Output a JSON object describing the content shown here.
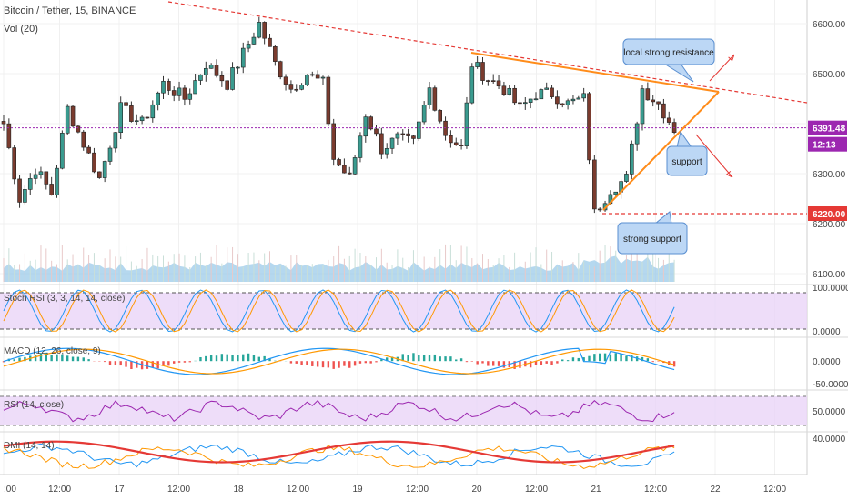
{
  "header": {
    "symbol_line": "Bitcoin / Tether, 15, BINANCE",
    "volume_label": "Vol (20)"
  },
  "chart_data": {
    "type": "candlestick",
    "price_axis": {
      "ticks": [
        "6600.00",
        "6500.00",
        "6400.00",
        "6300.00",
        "6200.00",
        "6100.00"
      ],
      "ylim": [
        6080,
        6640
      ]
    },
    "x_axis": {
      "ticks": [
        ":00",
        "12:00",
        "17",
        "12:00",
        "18",
        "12:00",
        "19",
        "12:00",
        "20",
        "12:00",
        "21",
        "12:00",
        "22",
        "12:00"
      ]
    },
    "price_anchors": [
      [
        0,
        6400
      ],
      [
        3,
        6250
      ],
      [
        6,
        6310
      ],
      [
        9,
        6260
      ],
      [
        12,
        6430
      ],
      [
        15,
        6360
      ],
      [
        18,
        6290
      ],
      [
        22,
        6430
      ],
      [
        26,
        6400
      ],
      [
        30,
        6480
      ],
      [
        34,
        6450
      ],
      [
        38,
        6520
      ],
      [
        42,
        6480
      ],
      [
        45,
        6540
      ],
      [
        48,
        6600
      ],
      [
        51,
        6520
      ],
      [
        54,
        6470
      ],
      [
        57,
        6500
      ],
      [
        60,
        6480
      ],
      [
        62,
        6330
      ],
      [
        65,
        6290
      ],
      [
        68,
        6420
      ],
      [
        71,
        6350
      ],
      [
        74,
        6370
      ],
      [
        77,
        6360
      ],
      [
        80,
        6470
      ],
      [
        83,
        6380
      ],
      [
        86,
        6350
      ],
      [
        88,
        6520
      ],
      [
        91,
        6490
      ],
      [
        94,
        6470
      ],
      [
        97,
        6430
      ],
      [
        100,
        6460
      ],
      [
        103,
        6460
      ],
      [
        106,
        6440
      ],
      [
        109,
        6450
      ],
      [
        111,
        6220
      ],
      [
        114,
        6270
      ],
      [
        117,
        6290
      ],
      [
        120,
        6470
      ],
      [
        123,
        6440
      ],
      [
        126,
        6390
      ]
    ],
    "price_tags": {
      "current": "6391.48",
      "countdown": "12:13",
      "support": "6220.00"
    },
    "colors": {
      "up": "#26a69a",
      "down": "#ef5350",
      "trend": "#ff8c1a",
      "dashed": "#e53935",
      "current_line": "#9c27b0",
      "volume": "#9ccbea"
    },
    "annotations": {
      "resistance": "local strong resistance",
      "support": "support",
      "strong_support": "strong support"
    },
    "indicators": {
      "stoch": {
        "label": "Stoch RSI (3, 3, 14, 14, close)",
        "ticks": [
          "100.0000",
          "0.0000"
        ]
      },
      "macd": {
        "label": "MACD (12, 26, close, 9)",
        "ticks": [
          "0.0000",
          "-50.0000"
        ]
      },
      "rsi": {
        "label": "RSI (14, close)",
        "ticks": [
          "50.0000"
        ]
      },
      "dmi": {
        "label": "DMI (14, 14)",
        "ticks": [
          "40.0000"
        ]
      }
    }
  }
}
